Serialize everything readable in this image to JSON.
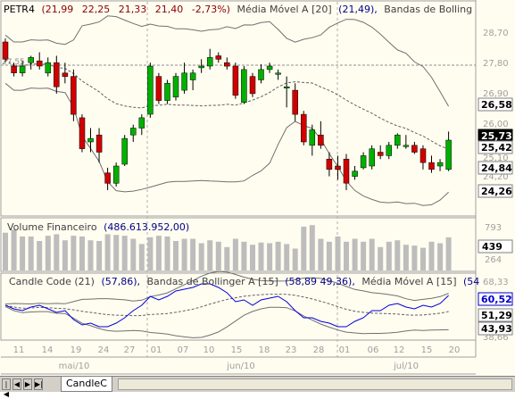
{
  "price_panel": {
    "symbol": "PETR4",
    "ohlc": [
      "(21,99",
      "22,25",
      "21,33",
      "21,40",
      "-2,73%)"
    ],
    "ma_label": "Média Móvel A [20]",
    "ma_value": "(21,49),",
    "bb_label": "Bandas de Bolling",
    "ref_line_label": "27,55",
    "axis_labels": [
      "28,70",
      "27,80",
      "26,90",
      "26,00",
      "25,10",
      "24,20"
    ],
    "boxed_labels": [
      {
        "text": "26,58",
        "style": "white"
      },
      {
        "text": "25,73",
        "style": "black"
      },
      {
        "text": "25,42",
        "style": "white"
      },
      {
        "text": "24,84",
        "style": "white"
      },
      {
        "text": "24,26",
        "style": "white"
      }
    ]
  },
  "volume_panel": {
    "title": "Volume Financeiro",
    "value": "(486.613.952,00)",
    "axis_labels": [
      "793",
      "264"
    ],
    "boxed_label": "439"
  },
  "candle_code_panel": {
    "title": "Candle Code (21)",
    "value": "(57,86),",
    "bb_label": "Bandas de Bollinger A [15]",
    "bb_values": "(58,89   49,36),",
    "ma_label": "Média Móvel A [15]",
    "ma_value": "(54",
    "axis_labels": [
      "68,33",
      "38,66"
    ],
    "boxed_labels": [
      {
        "text": "60,52",
        "style": "blue"
      },
      {
        "text": "51,29",
        "style": "white"
      },
      {
        "text": "43,93",
        "style": "white"
      }
    ]
  },
  "x_axis": {
    "day_labels": [
      "11",
      "14",
      "19",
      "24",
      "27",
      "01",
      "07",
      "10",
      "15",
      "18",
      "23",
      "28",
      "01",
      "06",
      "12",
      "15",
      "20"
    ],
    "month_labels": [
      "mai/10",
      "jun/10",
      "jul/10"
    ]
  },
  "tabs": {
    "nav_buttons": [
      "|◀",
      "◀",
      "▶",
      "▶|"
    ],
    "active_tab": "CandleC"
  },
  "chart_data": {
    "type": "candlestick",
    "title": "PETR4",
    "series": [
      {
        "name": "PETR4",
        "ohlc": [
          [
            28.6,
            28.7,
            28.0,
            28.1
          ],
          [
            27.9,
            28.0,
            27.6,
            27.7
          ],
          [
            27.7,
            28.05,
            27.6,
            27.9
          ],
          [
            28.0,
            28.2,
            27.8,
            28.15
          ],
          [
            28.05,
            28.3,
            27.8,
            27.9
          ],
          [
            27.7,
            28.15,
            27.6,
            28.0
          ],
          [
            28.0,
            28.2,
            27.1,
            27.3
          ],
          [
            27.7,
            28.0,
            27.4,
            27.6
          ],
          [
            27.6,
            27.8,
            26.3,
            26.5
          ],
          [
            26.4,
            26.5,
            25.4,
            25.5
          ],
          [
            25.7,
            26.1,
            25.4,
            25.8
          ],
          [
            25.9,
            26.1,
            25.1,
            25.4
          ],
          [
            24.8,
            24.95,
            24.3,
            24.5
          ],
          [
            24.5,
            25.1,
            24.4,
            25.0
          ],
          [
            25.05,
            25.9,
            25.0,
            25.8
          ],
          [
            25.9,
            26.2,
            25.7,
            26.1
          ],
          [
            26.1,
            26.5,
            25.9,
            26.4
          ],
          [
            26.5,
            28.0,
            26.4,
            27.9
          ],
          [
            27.6,
            27.7,
            26.8,
            26.9
          ],
          [
            26.9,
            27.5,
            26.8,
            27.4
          ],
          [
            27.0,
            27.7,
            26.9,
            27.6
          ],
          [
            27.2,
            28.0,
            27.1,
            27.7
          ],
          [
            27.5,
            27.8,
            27.2,
            27.7
          ],
          [
            27.85,
            28.1,
            27.7,
            27.9
          ],
          [
            27.9,
            28.4,
            27.8,
            28.15
          ],
          [
            28.2,
            28.3,
            28.0,
            28.1
          ],
          [
            28.0,
            28.15,
            27.8,
            27.9
          ],
          [
            27.9,
            28.0,
            26.95,
            27.05
          ],
          [
            26.85,
            27.9,
            26.8,
            27.8
          ],
          [
            27.6,
            27.7,
            27.0,
            27.1
          ],
          [
            27.5,
            27.95,
            27.4,
            27.8
          ],
          [
            27.8,
            28.0,
            27.7,
            27.9
          ],
          [
            27.7,
            27.8,
            27.5,
            27.7
          ],
          [
            27.3,
            27.6,
            26.7,
            27.3
          ],
          [
            27.2,
            27.4,
            26.3,
            26.5
          ],
          [
            26.5,
            26.6,
            25.6,
            25.7
          ],
          [
            25.6,
            26.2,
            25.3,
            26.05
          ],
          [
            25.9,
            26.3,
            25.5,
            25.6
          ],
          [
            25.2,
            25.4,
            24.7,
            24.9
          ],
          [
            25.0,
            25.3,
            24.6,
            24.9
          ],
          [
            25.2,
            25.35,
            24.3,
            24.5
          ],
          [
            24.7,
            25.0,
            24.6,
            24.85
          ],
          [
            24.95,
            25.4,
            24.9,
            25.3
          ],
          [
            25.0,
            25.6,
            24.9,
            25.5
          ],
          [
            25.4,
            25.6,
            25.2,
            25.3
          ],
          [
            25.3,
            25.7,
            25.2,
            25.6
          ],
          [
            25.6,
            25.95,
            25.5,
            25.9
          ],
          [
            25.6,
            25.9,
            25.5,
            25.6
          ],
          [
            25.6,
            25.7,
            25.35,
            25.4
          ],
          [
            25.5,
            25.6,
            24.9,
            25.1
          ],
          [
            25.1,
            25.3,
            24.8,
            24.9
          ],
          [
            25.0,
            25.2,
            24.85,
            25.1
          ],
          [
            24.9,
            26.0,
            24.85,
            25.75
          ]
        ]
      }
    ],
    "volume": [
      500,
      540,
      450,
      450,
      390,
      460,
      480,
      400,
      460,
      450,
      400,
      390,
      480,
      470,
      460,
      420,
      350,
      440,
      460,
      450,
      390,
      420,
      420,
      360,
      400,
      380,
      310,
      420,
      380,
      340,
      370,
      360,
      380,
      350,
      290,
      580,
      600,
      420,
      380,
      450,
      380,
      420,
      380,
      420,
      310,
      380,
      400,
      340,
      330,
      300,
      380,
      360,
      439
    ],
    "candle_code": [
      55,
      53,
      52,
      54,
      55,
      53,
      51,
      52,
      47,
      44,
      45,
      43,
      43,
      45,
      48,
      52,
      55,
      60,
      58,
      60,
      63,
      64,
      65,
      67,
      67,
      65,
      62,
      57,
      58,
      55,
      58,
      59,
      60,
      57,
      52,
      48,
      48,
      46,
      45,
      43,
      43,
      46,
      48,
      52,
      52,
      55,
      56,
      54,
      53,
      55,
      54,
      56,
      60.52
    ]
  }
}
